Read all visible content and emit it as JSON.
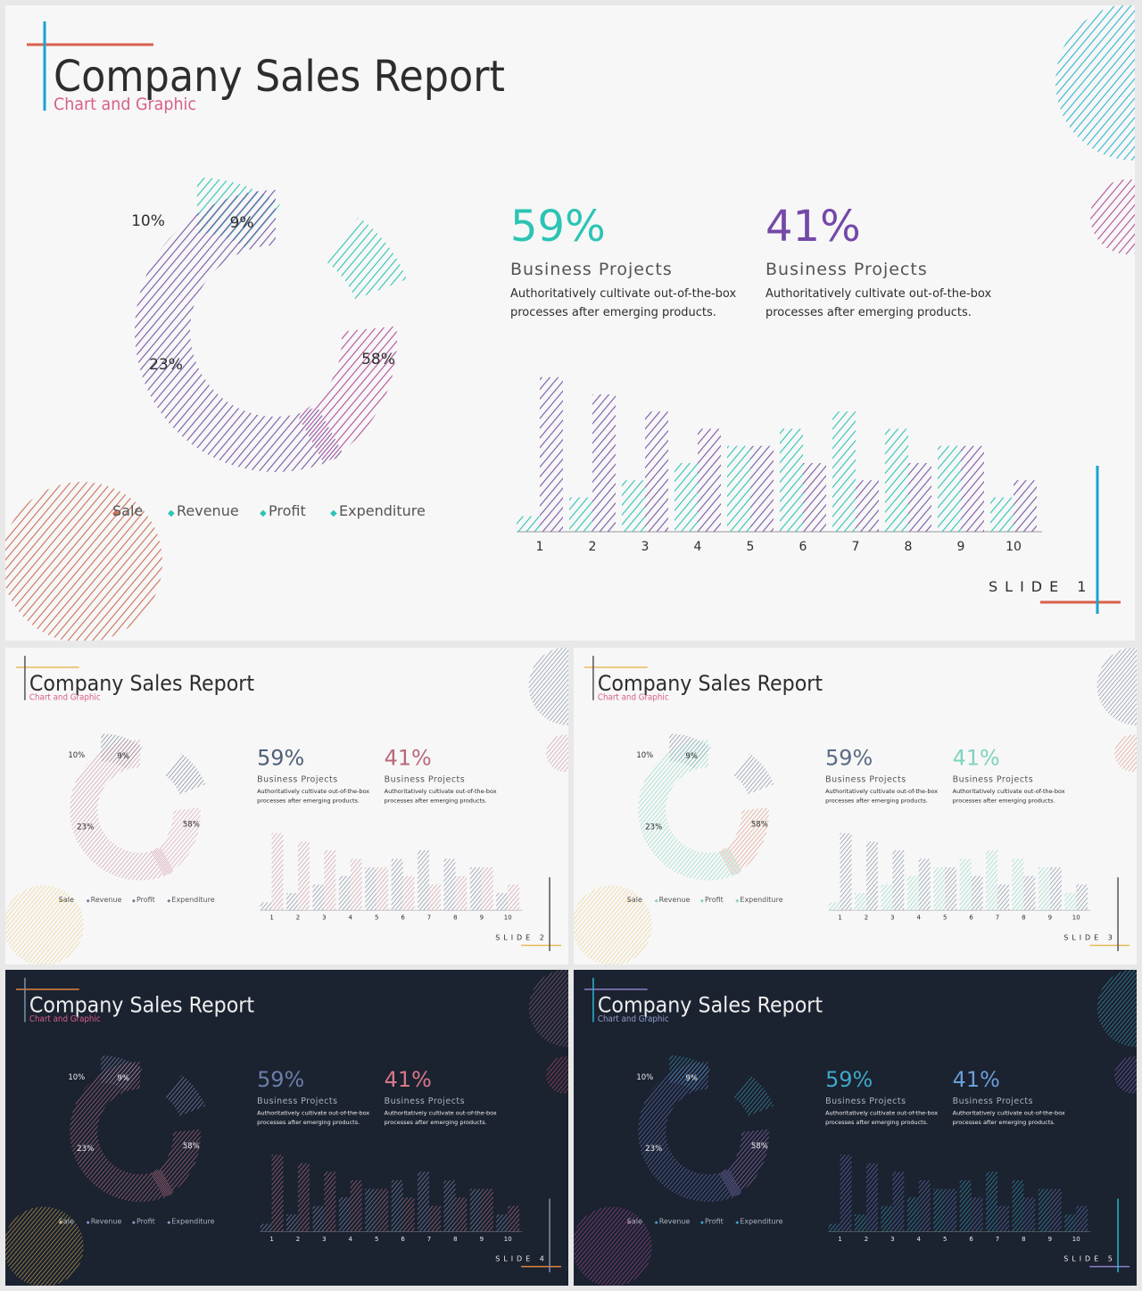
{
  "report": {
    "title": "Company Sales Report",
    "subtitle": "Chart and Graphic",
    "stat1": {
      "value": "59%",
      "heading": "Business Projects",
      "line1": "Authoritatively cultivate out-of-the-box",
      "line2": "processes after emerging products."
    },
    "stat2": {
      "value": "41%",
      "heading": "Business Projects",
      "line1": "Authoritatively cultivate out-of-the-box",
      "line2": "processes after emerging products."
    },
    "legend": [
      "Sale",
      "Revenue",
      "Profit",
      "Expenditure"
    ],
    "slide_label": "SLIDE"
  },
  "chart_data": [
    {
      "type": "pie",
      "variant": "donut",
      "categories": [
        "Sale",
        "Revenue",
        "Profit",
        "Expenditure"
      ],
      "values": [
        10,
        9,
        23,
        58
      ],
      "labels": [
        "10%",
        "9%",
        "23%",
        "58%"
      ],
      "exploded": [
        "10%",
        "23%"
      ]
    },
    {
      "type": "bar",
      "categories": [
        "1",
        "2",
        "3",
        "4",
        "5",
        "6",
        "7",
        "8",
        "9",
        "10"
      ],
      "ylim": [
        0,
        100
      ],
      "series": [
        {
          "values": [
            10,
            22,
            33,
            44,
            55,
            66,
            77,
            66,
            55,
            22
          ]
        },
        {
          "values": [
            99,
            88,
            77,
            66,
            55,
            44,
            33,
            44,
            55,
            33
          ]
        }
      ]
    }
  ],
  "slides": [
    {
      "number": "1",
      "theme": {
        "bg": "#f7f7f7",
        "title": "#2d2d2d",
        "subtitle": "#d75f8a",
        "accentH": "#d9604c",
        "accentV": "#1aa3d1",
        "text": "#555555",
        "c1": "#2cc4b4",
        "c2": "#7b55a5",
        "cDonut": "#7b55a5",
        "cPink": "#b24e9b",
        "cTeal": "#2cc4b4",
        "circTR": "#2db7cf",
        "circR": "#b24e9b",
        "circBL": "#cc6f58",
        "stat1": "#2cc4b4",
        "stat2": "#7448a8",
        "axis": "#999999"
      }
    },
    {
      "number": "2",
      "theme": {
        "bg": "#f7f7f7",
        "title": "#2d2d2d",
        "subtitle": "#d75f8a",
        "accentH": "#e8b64c",
        "accentV": "#555555",
        "text": "#555555",
        "c1": "#6a7a94",
        "c2": "#c78898",
        "cDonut": "#c78898",
        "cPink": "#d496a8",
        "cTeal": "#5a6a84",
        "circTR": "#6a7a94",
        "circR": "#c78898",
        "circBL": "#ebc87a",
        "stat1": "#4f5f78",
        "stat2": "#b86878",
        "axis": "#999999"
      }
    },
    {
      "number": "3",
      "theme": {
        "bg": "#f7f7f7",
        "title": "#2d2d2d",
        "subtitle": "#d75f8a",
        "accentH": "#e8b64c",
        "accentV": "#555555",
        "text": "#555555",
        "c1": "#7dd3c0",
        "c2": "#6a7a94",
        "cDonut": "#7dd3c0",
        "cPink": "#d98a6e",
        "cTeal": "#6a7a94",
        "circTR": "#6a7a94",
        "circR": "#d98a6e",
        "circBL": "#ebc87a",
        "stat1": "#5a6a84",
        "stat2": "#7dd3c0",
        "axis": "#999999"
      }
    },
    {
      "number": "4",
      "theme": {
        "bg": "#1b2230",
        "title": "#eeeeee",
        "subtitle": "#d75f8a",
        "accentH": "#e0843a",
        "accentV": "#7d90a8",
        "text": "#aab2c0",
        "c1": "#8e9ec8",
        "c2": "#c97a90",
        "cDonut": "#c97a90",
        "cPink": "#c97a90",
        "cTeal": "#8e9ec8",
        "circTR": "#9a6c86",
        "circR": "#c9506a",
        "circBL": "#e8b64c",
        "stat1": "#6a7ea8",
        "stat2": "#d87888",
        "axis": "#888888"
      }
    },
    {
      "number": "5",
      "theme": {
        "bg": "#1b2230",
        "title": "#eeeeee",
        "subtitle": "#8e9ec8",
        "accentH": "#8e7ec8",
        "accentV": "#2db7cf",
        "text": "#aab2c0",
        "c1": "#3fa7c8",
        "c2": "#6a7ec8",
        "cDonut": "#6a7ec8",
        "cPink": "#a87ec8",
        "cTeal": "#3fa7c8",
        "circTR": "#3fa7c8",
        "circR": "#8e6ec8",
        "circBL": "#b24e9b",
        "stat1": "#3fa7c8",
        "stat2": "#6a9ed8",
        "axis": "#888888"
      }
    }
  ]
}
